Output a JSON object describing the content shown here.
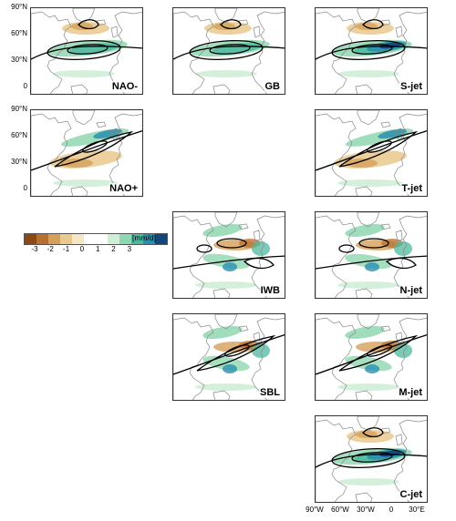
{
  "panels": [
    {
      "id": "nao-minus",
      "label": "NAO-",
      "col": 0,
      "row": 0,
      "jet": "zonal",
      "rain": "band"
    },
    {
      "id": "gb",
      "label": "GB",
      "col": 1,
      "row": 0,
      "jet": "zonal",
      "rain": "band"
    },
    {
      "id": "s-jet",
      "label": "S-jet",
      "col": 2,
      "row": 0,
      "jet": "zonal",
      "rain": "strong"
    },
    {
      "id": "nao-plus",
      "label": "NAO+",
      "col": 0,
      "row": 1,
      "jet": "tilted",
      "rain": "north"
    },
    {
      "id": "t-jet",
      "label": "T-jet",
      "col": 2,
      "row": 1,
      "jet": "tilted",
      "rain": "north"
    },
    {
      "id": "iwb",
      "label": "IWB",
      "col": 1,
      "row": 2,
      "jet": "split",
      "rain": "mixed"
    },
    {
      "id": "n-jet",
      "label": "N-jet",
      "col": 2,
      "row": 2,
      "jet": "split",
      "rain": "mixed"
    },
    {
      "id": "sbl",
      "label": "SBL",
      "col": 1,
      "row": 3,
      "jet": "tilted",
      "rain": "mixed"
    },
    {
      "id": "m-jet",
      "label": "M-jet",
      "col": 2,
      "row": 3,
      "jet": "tilted",
      "rain": "mixed"
    },
    {
      "id": "c-jet",
      "label": "C-jet",
      "col": 2,
      "row": 4,
      "jet": "zonal",
      "rain": "strong"
    }
  ],
  "y_ticks": [
    "90°N",
    "60°N",
    "30°N",
    "0"
  ],
  "x_ticks": [
    "90°W",
    "60°W",
    "30°W",
    "0",
    "30°E"
  ],
  "colorbar": {
    "tick_labels": [
      "-3",
      "-2",
      "-1",
      "0",
      "1",
      "2",
      "3"
    ],
    "unit": "[mm/d]",
    "colors": [
      "#8c4a12",
      "#b8702e",
      "#d6a05a",
      "#e9c98e",
      "#f5e6c4",
      "#ffffff",
      "#ffffff",
      "#cfeed6",
      "#8fd7b0",
      "#4fb8a0",
      "#2a8fae",
      "#12477e"
    ]
  }
}
